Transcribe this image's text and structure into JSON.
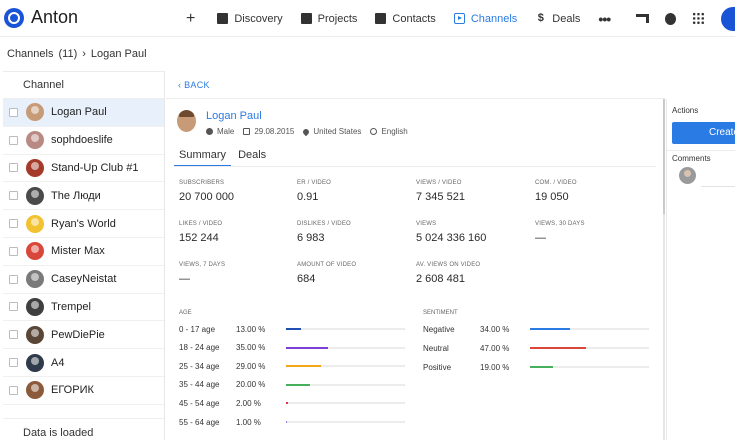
{
  "app": {
    "brand": "Anton"
  },
  "nav": {
    "plus_label": "+",
    "items": [
      {
        "label": "Discovery",
        "icon": "search-doc-icon",
        "active": false
      },
      {
        "label": "Projects",
        "icon": "briefcase-icon",
        "active": false
      },
      {
        "label": "Contacts",
        "icon": "contact-card-icon",
        "active": false
      },
      {
        "label": "Channels",
        "icon": "video-play-icon",
        "active": true
      },
      {
        "label": "Deals",
        "icon": "dollar-icon",
        "active": false
      }
    ],
    "more_label": "•••"
  },
  "breadcrumb": {
    "root": "Channels",
    "count": "(11)",
    "separator": "›",
    "current": "Logan Paul"
  },
  "channels": {
    "header": "Channel",
    "items": [
      {
        "name": "Logan Paul",
        "selected": true,
        "color": "#c79b78"
      },
      {
        "name": "sophdoeslife",
        "selected": false,
        "color": "#b98a84"
      },
      {
        "name": "Stand-Up Club #1",
        "selected": false,
        "color": "#a43a2a"
      },
      {
        "name": "The Люди",
        "selected": false,
        "color": "#4a4a4a"
      },
      {
        "name": "Ryan's World",
        "selected": false,
        "color": "#f2c230"
      },
      {
        "name": "Mister Max",
        "selected": false,
        "color": "#d9473a"
      },
      {
        "name": "CaseyNeistat",
        "selected": false,
        "color": "#7a7a7a"
      },
      {
        "name": "Trempel",
        "selected": false,
        "color": "#3f3f3f"
      },
      {
        "name": "PewDiePie",
        "selected": false,
        "color": "#5a4636"
      },
      {
        "name": "A4",
        "selected": false,
        "color": "#2f3a4a"
      },
      {
        "name": "ЕГОРИК",
        "selected": false,
        "color": "#8a5a3a"
      }
    ],
    "status": "Data is loaded"
  },
  "detail": {
    "back_label": "‹ BACK",
    "name": "Logan Paul",
    "gender": "Male",
    "date": "29.08.2015",
    "country": "United States",
    "language": "English",
    "tabs": [
      "Summary",
      "Deals"
    ],
    "stats": [
      {
        "label": "SUBSCRIBERS",
        "value": "20 700 000"
      },
      {
        "label": "ER / VIDEO",
        "value": "0.91"
      },
      {
        "label": "VIEWS / VIDEO",
        "value": "7 345 521"
      },
      {
        "label": "COM. / VIDEO",
        "value": "19 050"
      },
      {
        "label": "LIKES / VIDEO",
        "value": "152 244"
      },
      {
        "label": "DISLIKES / VIDEO",
        "value": "6 983"
      },
      {
        "label": "VIEWS",
        "value": "5 024 336 160"
      },
      {
        "label": "VIEWS, 30 DAYS",
        "value": "—"
      },
      {
        "label": "VIEWS, 7 DAYS",
        "value": "—"
      },
      {
        "label": "AMOUNT OF VIDEO",
        "value": "684"
      },
      {
        "label": "AV. VIEWS ON VIDEO",
        "value": "2 608 481"
      }
    ],
    "age": {
      "label": "AGE",
      "rows": [
        {
          "name": "0 - 17 age",
          "pct": "13.00 %",
          "value": 13,
          "color": "#1f4fb3"
        },
        {
          "name": "18 - 24 age",
          "pct": "35.00 %",
          "value": 35,
          "color": "#7b3fd6"
        },
        {
          "name": "25 - 34 age",
          "pct": "29.00 %",
          "value": 29,
          "color": "#f2a81d"
        },
        {
          "name": "35 - 44 age",
          "pct": "20.00 %",
          "value": 20,
          "color": "#46b05a"
        },
        {
          "name": "45 - 54 age",
          "pct": "2.00 %",
          "value": 2,
          "color": "#e0334a"
        },
        {
          "name": "55 - 64 age",
          "pct": "1.00 %",
          "value": 1,
          "color": "#8a8ae0"
        }
      ]
    },
    "sentiment": {
      "label": "SENTIMENT",
      "rows": [
        {
          "name": "Negative",
          "pct": "34.00 %",
          "value": 34,
          "color": "#2a7be4"
        },
        {
          "name": "Neutral",
          "pct": "47.00 %",
          "value": 47,
          "color": "#d9473a"
        },
        {
          "name": "Positive",
          "pct": "19.00 %",
          "value": 19,
          "color": "#46b05a"
        }
      ]
    }
  },
  "side": {
    "actions_label": "Actions",
    "create_label": "Create",
    "comments_label": "Comments"
  }
}
